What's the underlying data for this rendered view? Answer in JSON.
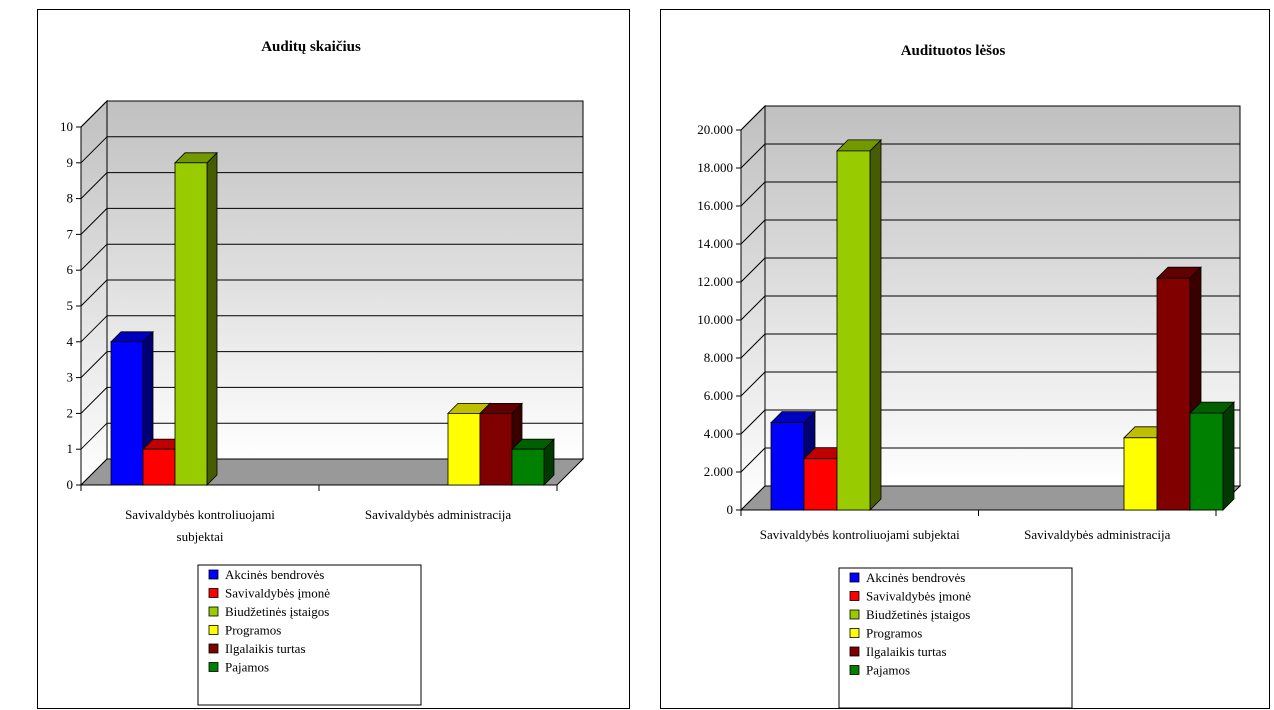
{
  "legend": [
    "Akcinės bendrovės",
    "Savivaldybės įmonė",
    "Biudžetinės įstaigos",
    "Programos",
    "Ilgalaikis turtas",
    "Pajamos"
  ],
  "colors": {
    "Akcinės bendrovės": "#0000ff",
    "Savivaldybės įmonė": "#ff0000",
    "Biudžetinės įstaigos": "#99cc00",
    "Programos": "#ffff00",
    "Ilgalaikis turtas": "#800000",
    "Pajamos": "#008000"
  },
  "chart_data": [
    {
      "type": "bar",
      "title": "Auditų skaičius",
      "categories": [
        "Savivaldybės kontroliuojami subjektai",
        "Savivaldybės administracija"
      ],
      "category_lines": [
        [
          "Savivaldybės kontroliuojami",
          "subjektai"
        ],
        [
          "Savivaldybės administracija"
        ]
      ],
      "y_ticks": [
        "0",
        "1",
        "2",
        "3",
        "4",
        "5",
        "6",
        "7",
        "8",
        "9",
        "10"
      ],
      "ylim": [
        0,
        10
      ],
      "grid": true,
      "legend_position": "bottom",
      "series": [
        {
          "name": "Akcinės bendrovės",
          "values": [
            4,
            0
          ]
        },
        {
          "name": "Savivaldybės įmonė",
          "values": [
            1,
            0
          ]
        },
        {
          "name": "Biudžetinės įstaigos",
          "values": [
            9,
            0
          ]
        },
        {
          "name": "Programos",
          "values": [
            0,
            2
          ]
        },
        {
          "name": "Ilgalaikis turtas",
          "values": [
            0,
            2
          ]
        },
        {
          "name": "Pajamos",
          "values": [
            0,
            1
          ]
        }
      ]
    },
    {
      "type": "bar",
      "title": "Audituotos lėšos",
      "categories": [
        "Savivaldybės kontroliuojami subjektai",
        "Savivaldybės administracija"
      ],
      "category_lines": [
        [
          "Savivaldybės kontroliuojami subjektai"
        ],
        [
          "Savivaldybės administracija"
        ]
      ],
      "y_ticks": [
        "0",
        "2.000",
        "4.000",
        "6.000",
        "8.000",
        "10.000",
        "12.000",
        "14.000",
        "16.000",
        "18.000",
        "20.000"
      ],
      "ylim": [
        0,
        20000
      ],
      "grid": true,
      "legend_position": "bottom",
      "series": [
        {
          "name": "Akcinės bendrovės",
          "values": [
            4600,
            0
          ]
        },
        {
          "name": "Savivaldybės įmonė",
          "values": [
            2700,
            0
          ]
        },
        {
          "name": "Biudžetinės įstaigos",
          "values": [
            18900,
            0
          ]
        },
        {
          "name": "Programos",
          "values": [
            0,
            3800
          ]
        },
        {
          "name": "Ilgalaikis turtas",
          "values": [
            0,
            12200
          ]
        },
        {
          "name": "Pajamos",
          "values": [
            0,
            5100
          ]
        }
      ]
    }
  ]
}
